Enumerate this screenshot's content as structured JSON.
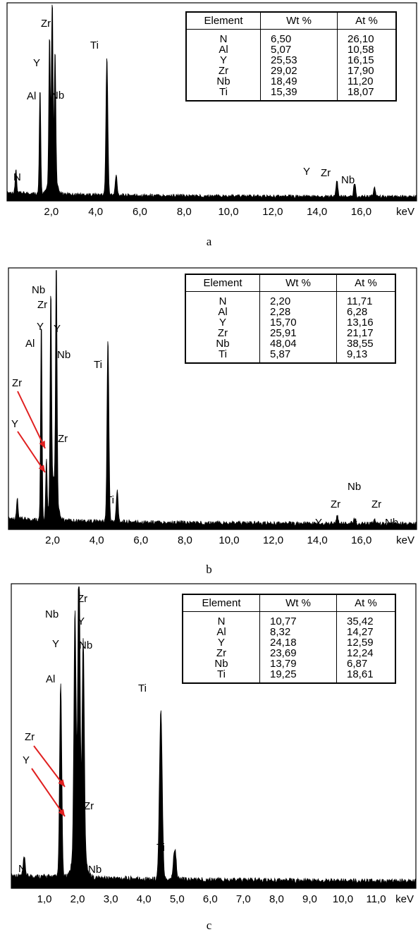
{
  "chart_data": [
    {
      "type": "line",
      "caption": "a",
      "xlabel": "keV",
      "xlim": [
        0.0,
        18.5
      ],
      "ylim": [
        0,
        100
      ],
      "x_ticks": [
        "2,0",
        "4,0",
        "6,0",
        "8,0",
        "10,0",
        "12,0",
        "14,0",
        "16,0"
      ],
      "x_tick_values": [
        2,
        4,
        6,
        8,
        10,
        12,
        14,
        16
      ],
      "peaks": [
        {
          "label": "N",
          "x": 0.4,
          "height": 12
        },
        {
          "label": "Al",
          "x": 1.49,
          "height": 53
        },
        {
          "label": "Y",
          "x": 1.92,
          "height": 70
        },
        {
          "label": "Zr",
          "x": 2.04,
          "height": 87
        },
        {
          "label": "Nb",
          "x": 2.17,
          "height": 62
        },
        {
          "label": "Ti",
          "x": 4.51,
          "height": 70
        },
        {
          "label": "",
          "x": 4.93,
          "height": 10
        },
        {
          "label": "Y",
          "x": 14.9,
          "height": 8
        },
        {
          "label": "Zr",
          "x": 15.7,
          "height": 7
        },
        {
          "label": "Nb",
          "x": 16.6,
          "height": 5
        }
      ],
      "table": {
        "headers": [
          "Element",
          "Wt %",
          "At %"
        ],
        "rows": [
          [
            "N",
            "6,50",
            "26,10"
          ],
          [
            "Al",
            "5,07",
            "10,58"
          ],
          [
            "Y",
            "25,53",
            "16,15"
          ],
          [
            "Zr",
            "29,02",
            "17,90"
          ],
          [
            "Nb",
            "18,49",
            "11,20"
          ],
          [
            "Ti",
            "15,39",
            "18,07"
          ]
        ]
      }
    },
    {
      "type": "line",
      "caption": "b",
      "xlabel": "keV",
      "xlim": [
        0.0,
        18.5
      ],
      "ylim": [
        0,
        100
      ],
      "x_ticks": [
        "2,0",
        "4,0",
        "6,0",
        "8,0",
        "10,0",
        "12,0",
        "14,0",
        "16,0"
      ],
      "x_tick_values": [
        2,
        4,
        6,
        8,
        10,
        12,
        14,
        16
      ],
      "peaks": [
        {
          "label": "N",
          "x": 0.4,
          "height": 8
        },
        {
          "label": "Al",
          "x": 1.49,
          "height": 76
        },
        {
          "label": "Zr",
          "x": 1.72,
          "height": 22
        },
        {
          "label": "Y",
          "x": 1.92,
          "height": 78
        },
        {
          "label": "Nb",
          "x": 2.17,
          "height": 92
        },
        {
          "label": "Ti",
          "x": 4.51,
          "height": 70
        },
        {
          "label": "Ti",
          "x": 4.93,
          "height": 12
        },
        {
          "label": "Y",
          "x": 14.9,
          "height": 3
        },
        {
          "label": "Zr",
          "x": 15.7,
          "height": 2
        },
        {
          "label": "Nb",
          "x": 16.6,
          "height": 2
        }
      ],
      "extra_labels": [
        "Nb",
        "Zr",
        "Y",
        "Y",
        "Nb",
        "Zr",
        "Y",
        "Zr",
        "Y",
        "Nb",
        "Ti",
        "Ti",
        "Nb",
        "Zr",
        "Zr",
        "Nb",
        "Y"
      ],
      "table": {
        "headers": [
          "Element",
          "Wt %",
          "At %"
        ],
        "rows": [
          [
            "N",
            "2,20",
            "11,71"
          ],
          [
            "Al",
            "2,28",
            "6,28"
          ],
          [
            "Y",
            "15,70",
            "13,16"
          ],
          [
            "Zr",
            "25,91",
            "21,17"
          ],
          [
            "Nb",
            "48,04",
            "38,55"
          ],
          [
            "Ti",
            "5,87",
            "9,13"
          ]
        ]
      }
    },
    {
      "type": "line",
      "caption": "c",
      "xlabel": "keV",
      "xlim": [
        0.0,
        12.2
      ],
      "ylim": [
        0,
        100
      ],
      "x_ticks": [
        "1,0",
        "2,0",
        "3,0",
        "4,0",
        "5,0",
        "6,0",
        "7,0",
        "8,0",
        "9,0",
        "10,0",
        "11,0"
      ],
      "x_tick_values": [
        1,
        2,
        3,
        4,
        5,
        6,
        7,
        8,
        9,
        10,
        11
      ],
      "peaks": [
        {
          "label": "N",
          "x": 0.39,
          "height": 6
        },
        {
          "label": "Al",
          "x": 1.49,
          "height": 64
        },
        {
          "label": "Y",
          "x": 1.92,
          "height": 78
        },
        {
          "label": "Zr",
          "x": 2.04,
          "height": 96
        },
        {
          "label": "Nb",
          "x": 2.17,
          "height": 68
        },
        {
          "label": "Ti",
          "x": 4.51,
          "height": 55
        },
        {
          "label": "Ti",
          "x": 4.93,
          "height": 10
        }
      ],
      "table": {
        "headers": [
          "Element",
          "Wt %",
          "At %"
        ],
        "rows": [
          [
            "N",
            "10,77",
            "35,42"
          ],
          [
            "Al",
            "8,32",
            "14,27"
          ],
          [
            "Y",
            "24,18",
            "12,59"
          ],
          [
            "Zr",
            "23,69",
            "12,24"
          ],
          [
            "Nb",
            "13,79",
            "6,87"
          ],
          [
            "Ti",
            "19,25",
            "18,61"
          ]
        ]
      }
    }
  ],
  "colors": {
    "spectrum": "#000000",
    "arrow": "#e02020",
    "background": "#ffffff"
  }
}
